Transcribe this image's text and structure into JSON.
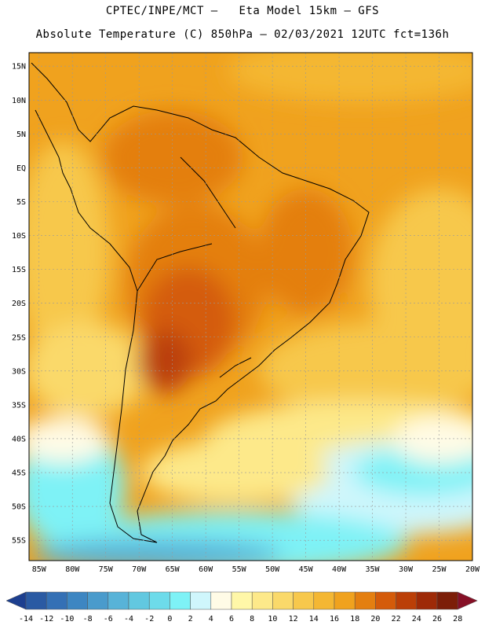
{
  "header": {
    "line1": "CPTEC/INPE/MCT –   Eta Model 15km – GFS",
    "line2": "Absolute Temperature (C) 850hPa – 02/03/2021 12UTC fct=136h"
  },
  "map": {
    "lat_labels": [
      "15N",
      "10N",
      "5N",
      "EQ",
      "5S",
      "10S",
      "15S",
      "20S",
      "25S",
      "30S",
      "35S",
      "40S",
      "45S",
      "50S",
      "55S"
    ],
    "lat_values": [
      15,
      10,
      5,
      0,
      -5,
      -10,
      -15,
      -20,
      -25,
      -30,
      -35,
      -40,
      -45,
      -50,
      -55
    ],
    "lon_labels": [
      "85W",
      "80W",
      "75W",
      "70W",
      "65W",
      "60W",
      "55W",
      "50W",
      "45W",
      "40W",
      "35W",
      "30W",
      "25W",
      "20W"
    ],
    "lon_values": [
      -85,
      -80,
      -75,
      -70,
      -65,
      -60,
      -55,
      -50,
      -45,
      -40,
      -35,
      -30,
      -25,
      -20
    ],
    "extent": {
      "lon_min": -86.5,
      "lon_max": -20,
      "lat_min": -58,
      "lat_max": 17
    }
  },
  "colorbar": {
    "labels": [
      "-14",
      "-12",
      "-10",
      "-8",
      "-6",
      "-4",
      "-2",
      "0",
      "2",
      "4",
      "6",
      "8",
      "10",
      "12",
      "14",
      "16",
      "18",
      "20",
      "22",
      "24",
      "26",
      "28"
    ],
    "colors": [
      "#1d3f8f",
      "#2a5aa3",
      "#3470b5",
      "#3d86c2",
      "#4a9bcc",
      "#58b3d8",
      "#62c8e0",
      "#6ddbea",
      "#7ef2f6",
      "#cff6fc",
      "#fffbe6",
      "#fff7a8",
      "#fde98a",
      "#fad96a",
      "#f7c84c",
      "#f4b733",
      "#f0a21e",
      "#e47f10",
      "#d45b0a",
      "#bb3f07",
      "#9e2a07",
      "#7c1e08",
      "#861026"
    ]
  }
}
